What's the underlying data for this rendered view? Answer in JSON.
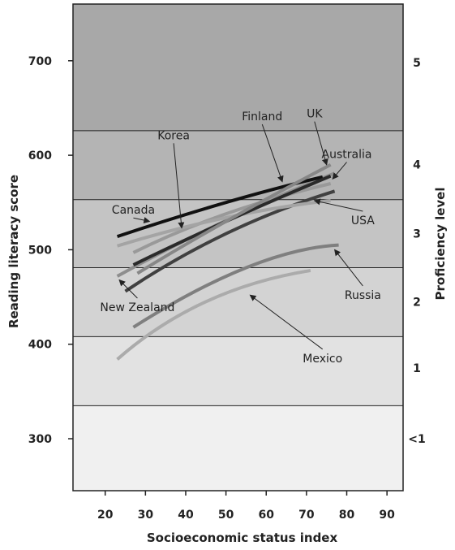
{
  "chart_data": {
    "type": "line",
    "xlabel": "Socioeconomic status index",
    "ylabel": "Reading literacy score",
    "y2label": "Proficiency level",
    "xlim": [
      12,
      94
    ],
    "ylim": [
      245,
      760
    ],
    "xticks": [
      20,
      30,
      40,
      50,
      60,
      70,
      80,
      90
    ],
    "yticks": [
      300,
      400,
      500,
      600,
      700
    ],
    "proficiency_bands": [
      {
        "label": "<1",
        "from": 245,
        "to": 335,
        "color": "#f0f0f0"
      },
      {
        "label": "1",
        "from": 335,
        "to": 408,
        "color": "#e2e2e2"
      },
      {
        "label": "2",
        "from": 408,
        "to": 481,
        "color": "#d3d3d3"
      },
      {
        "label": "3",
        "from": 481,
        "to": 553,
        "color": "#c4c4c4"
      },
      {
        "label": "4",
        "from": 553,
        "to": 626,
        "color": "#b4b4b4"
      },
      {
        "label": "5",
        "from": 626,
        "to": 760,
        "color": "#a8a8a8"
      }
    ],
    "proficiency_label_values": [
      {
        "label": "<1",
        "y": 300
      },
      {
        "label": "1",
        "y": 375
      },
      {
        "label": "2",
        "y": 445
      },
      {
        "label": "3",
        "y": 517
      },
      {
        "label": "4",
        "y": 590
      },
      {
        "label": "5",
        "y": 698
      }
    ],
    "series": [
      {
        "name": "Mexico",
        "color": "#ababab",
        "x": [
          23,
          45,
          71
        ],
        "y": [
          384,
          445,
          478
        ]
      },
      {
        "name": "Russia",
        "color": "#7f7f7f",
        "x": [
          27,
          55,
          78
        ],
        "y": [
          418,
          481,
          505
        ]
      },
      {
        "name": "New Zealand",
        "color": "#8e8e8e",
        "x": [
          23,
          50,
          77
        ],
        "y": [
          472,
          531,
          581
        ]
      },
      {
        "name": "USA",
        "color": "#404040",
        "x": [
          25,
          50,
          77
        ],
        "y": [
          456,
          517,
          562
        ]
      },
      {
        "name": "Korea",
        "color": "#999999",
        "x": [
          27,
          50,
          76
        ],
        "y": [
          497,
          538,
          570
        ]
      },
      {
        "name": "Canada",
        "color": "#a4a4a4",
        "x": [
          23,
          50,
          76
        ],
        "y": [
          504,
          534,
          552
        ]
      },
      {
        "name": "Finland",
        "color": "#111111",
        "x": [
          23,
          50,
          74
        ],
        "y": [
          514,
          550,
          577
        ]
      },
      {
        "name": "Australia",
        "color": "#2a2a2a",
        "x": [
          27,
          50,
          76
        ],
        "y": [
          484,
          530,
          578
        ]
      },
      {
        "name": "UK",
        "color": "#878787",
        "x": [
          28,
          50,
          76
        ],
        "y": [
          475,
          530,
          590
        ]
      }
    ],
    "annotations": [
      {
        "text": "Finland",
        "x": 59,
        "y": 637,
        "anchor": "middle",
        "arrow_to": [
          64,
          572
        ]
      },
      {
        "text": "UK",
        "x": 72,
        "y": 640,
        "anchor": "middle",
        "arrow_to": [
          75,
          590
        ]
      },
      {
        "text": "Australia",
        "x": 80,
        "y": 597,
        "anchor": "middle",
        "arrow_to": [
          76.5,
          575
        ]
      },
      {
        "text": "Korea",
        "x": 37,
        "y": 617,
        "anchor": "middle",
        "arrow_to": [
          39,
          523
        ]
      },
      {
        "text": "Canada",
        "x": 27,
        "y": 538,
        "anchor": "middle",
        "arrow_to": [
          31,
          530
        ]
      },
      {
        "text": "USA",
        "x": 84,
        "y": 527,
        "anchor": "middle",
        "arrow_to": [
          72,
          552
        ]
      },
      {
        "text": "Russia",
        "x": 84,
        "y": 448,
        "anchor": "middle",
        "arrow_to": [
          77,
          500
        ]
      },
      {
        "text": "New Zealand",
        "x": 28,
        "y": 435,
        "anchor": "middle",
        "arrow_to": [
          23.5,
          468
        ]
      },
      {
        "text": "Mexico",
        "x": 74,
        "y": 381,
        "anchor": "middle",
        "arrow_to": [
          56,
          452
        ]
      }
    ]
  }
}
